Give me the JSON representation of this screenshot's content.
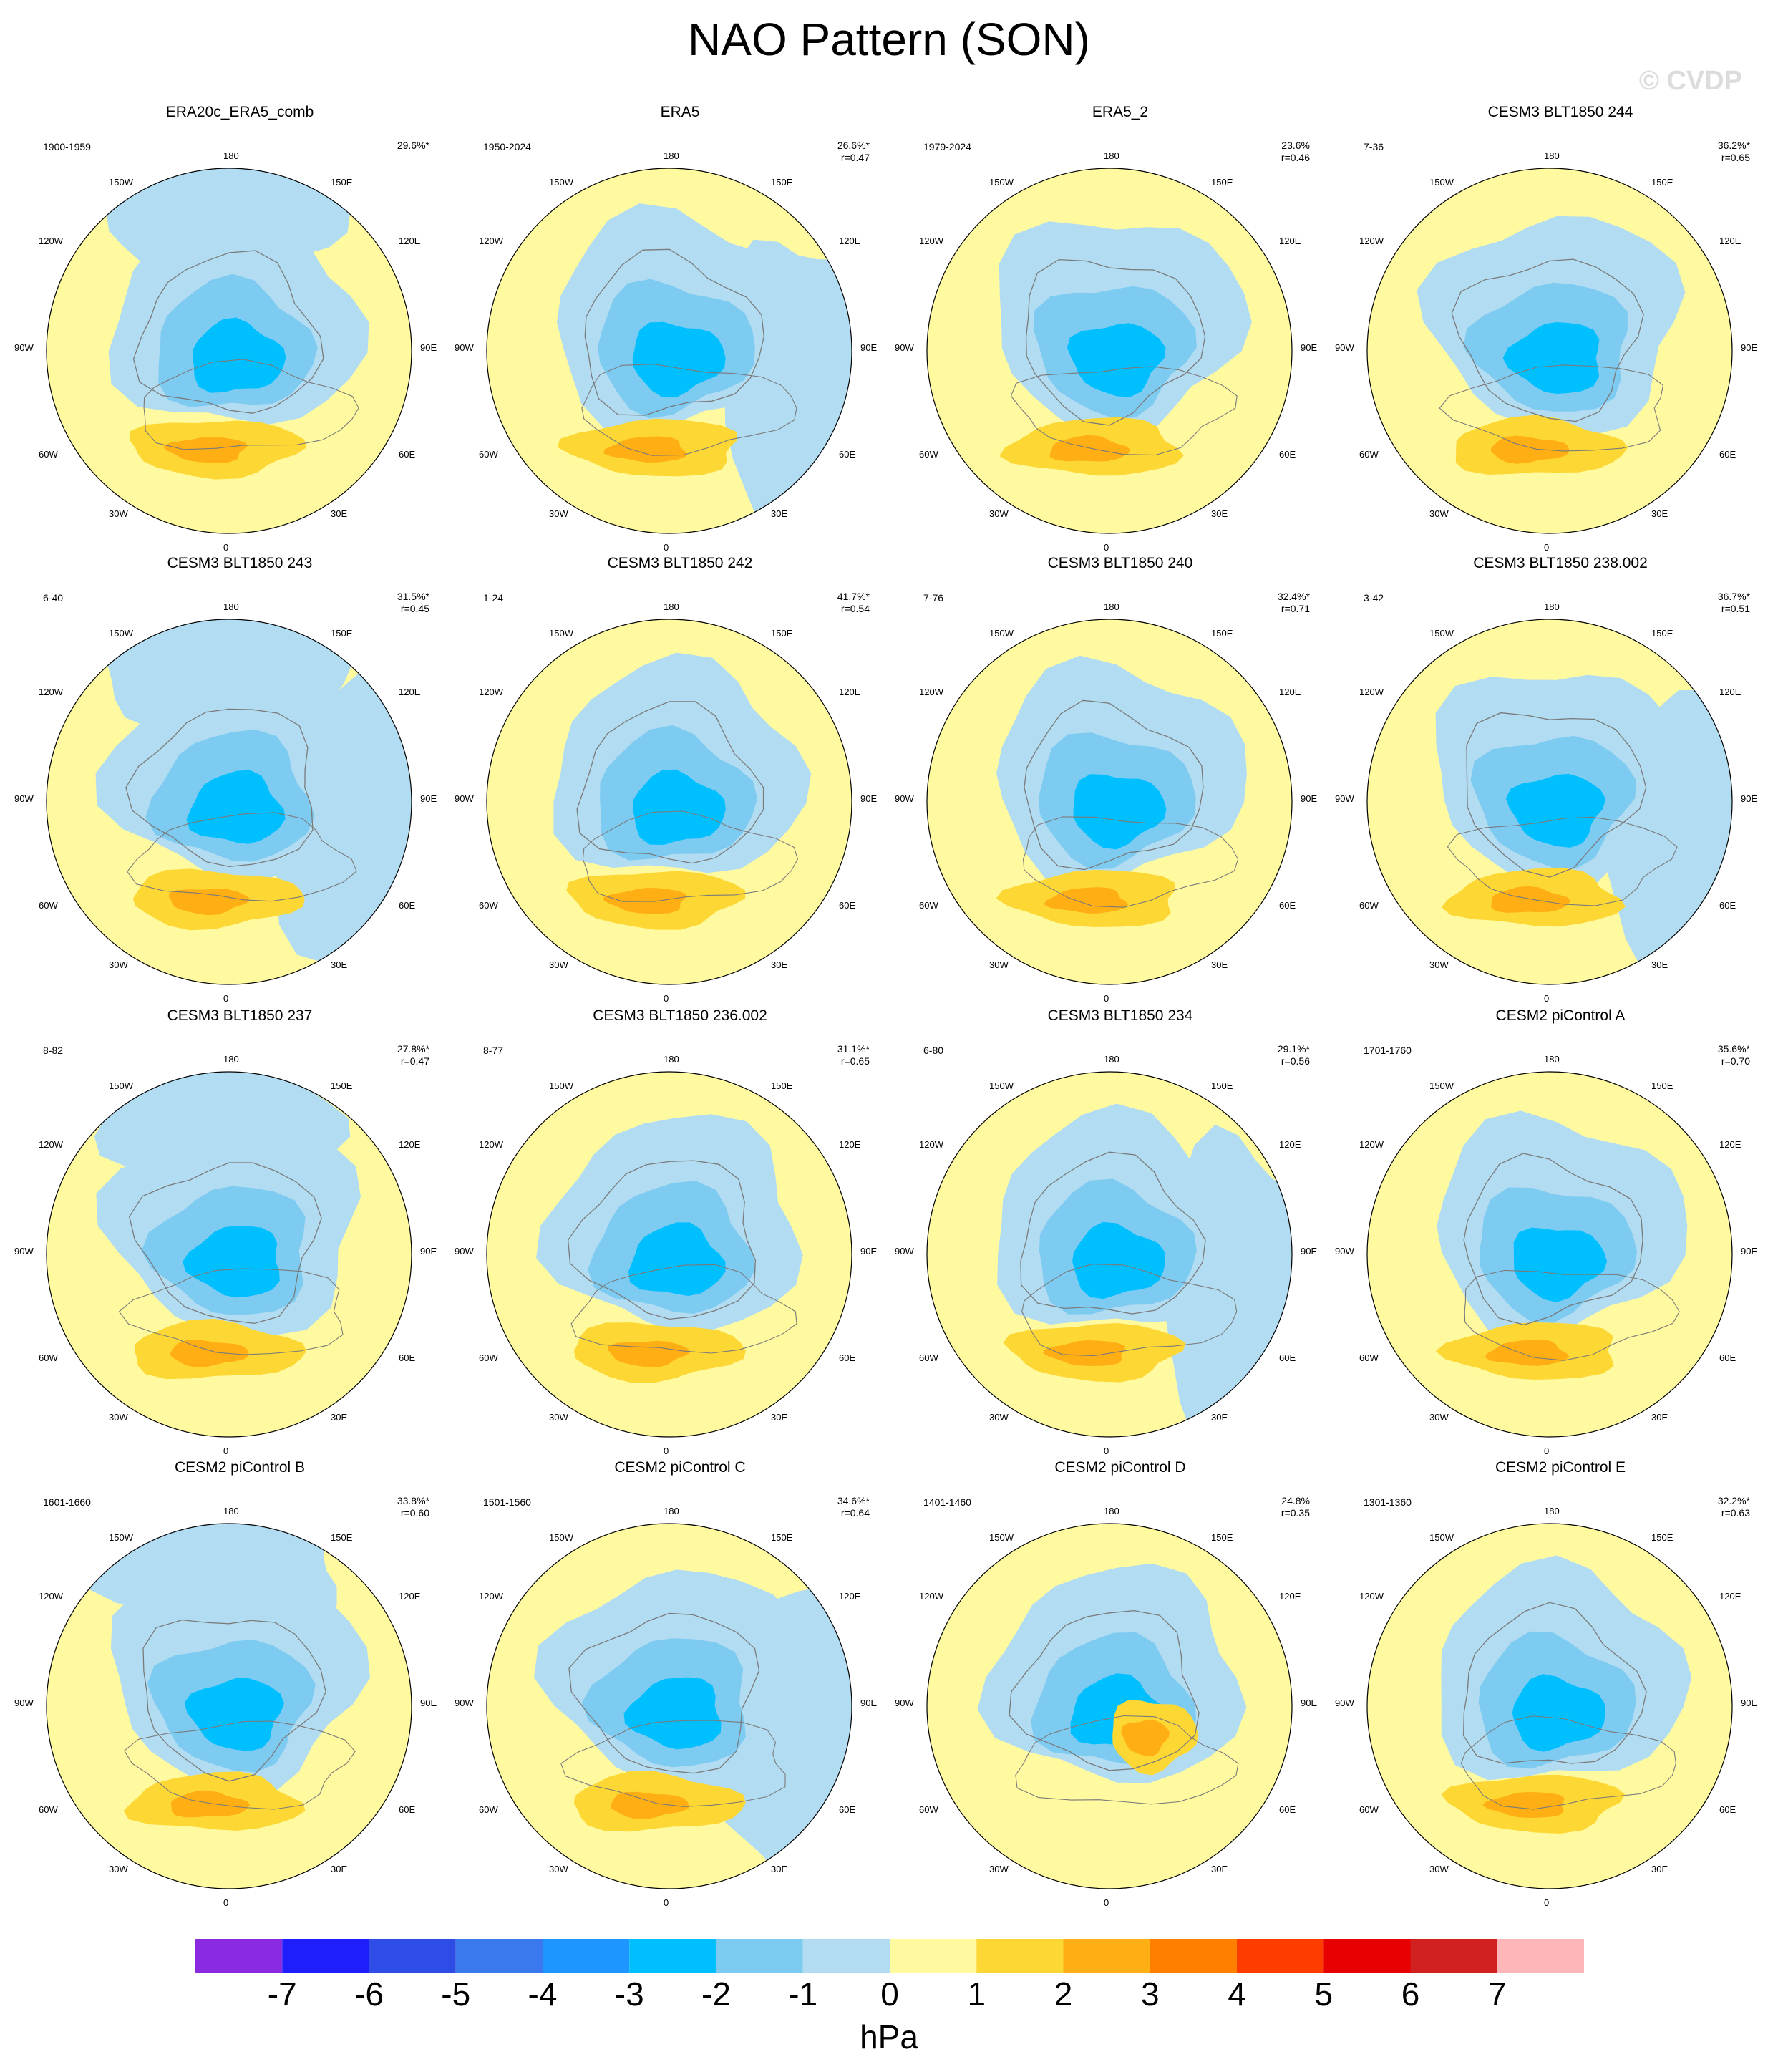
{
  "title": "NAO Pattern (SON)",
  "watermark": "© CVDP",
  "map": {
    "lon_labels": {
      "top": "180",
      "bottom": "0",
      "l150": "150W",
      "r150": "150E",
      "l120": "120W",
      "r120": "120E",
      "l90": "90W",
      "r90": "90E",
      "l60": "60W",
      "r60": "60E",
      "l30": "30W",
      "r30": "30E"
    }
  },
  "colors": {
    "neg7": "#8a2be2",
    "neg6": "#1e1efc",
    "neg5": "#2e4de6",
    "neg4": "#3a78ee",
    "neg3": "#1e96ff",
    "neg2": "#00bfff",
    "neg1": "#7ecbf2",
    "neg0": "#b2dcf2",
    "pos0": "#fffaa0",
    "pos1": "#fdd835",
    "pos2": "#ffae14",
    "pos3": "#ff7f00",
    "pos4": "#ff3c00",
    "pos5": "#e60000",
    "pos6": "#d02020",
    "pos7": "#ffb6b9",
    "land": "#7a7a7a"
  },
  "panels": [
    {
      "title": "ERA20c_ERA5_comb",
      "years": "1900-1959",
      "pct": "29.6%*",
      "r": ""
    },
    {
      "title": "ERA5",
      "years": "1950-2024",
      "pct": "26.6%*",
      "r": "r=0.47"
    },
    {
      "title": "ERA5_2",
      "years": "1979-2024",
      "pct": "23.6%",
      "r": "r=0.46"
    },
    {
      "title": "CESM3 BLT1850 244",
      "years": "7-36",
      "pct": "36.2%*",
      "r": "r=0.65"
    },
    {
      "title": "CESM3 BLT1850 243",
      "years": "6-40",
      "pct": "31.5%*",
      "r": "r=0.45"
    },
    {
      "title": "CESM3 BLT1850 242",
      "years": "1-24",
      "pct": "41.7%*",
      "r": "r=0.54"
    },
    {
      "title": "CESM3 BLT1850 240",
      "years": "7-76",
      "pct": "32.4%*",
      "r": "r=0.71"
    },
    {
      "title": "CESM3 BLT1850 238.002",
      "years": "3-42",
      "pct": "36.7%*",
      "r": "r=0.51"
    },
    {
      "title": "CESM3 BLT1850 237",
      "years": "8-82",
      "pct": "27.8%*",
      "r": "r=0.47"
    },
    {
      "title": "CESM3 BLT1850 236.002",
      "years": "8-77",
      "pct": "31.1%*",
      "r": "r=0.65"
    },
    {
      "title": "CESM3 BLT1850 234",
      "years": "6-80",
      "pct": "29.1%*",
      "r": "r=0.56"
    },
    {
      "title": "CESM2 piControl A",
      "years": "1701-1760",
      "pct": "35.6%*",
      "r": "r=0.70"
    },
    {
      "title": "CESM2 piControl B",
      "years": "1601-1660",
      "pct": "33.8%*",
      "r": "r=0.60"
    },
    {
      "title": "CESM2 piControl C",
      "years": "1501-1560",
      "pct": "34.6%*",
      "r": "r=0.64"
    },
    {
      "title": "CESM2 piControl D",
      "years": "1401-1460",
      "pct": "24.8%",
      "r": "r=0.35"
    },
    {
      "title": "CESM2 piControl E",
      "years": "1301-1360",
      "pct": "32.2%*",
      "r": "r=0.63"
    }
  ],
  "colorbar": {
    "labels": [
      "-7",
      "-6",
      "-5",
      "-4",
      "-3",
      "-2",
      "-1",
      "0",
      "1",
      "2",
      "3",
      "4",
      "5",
      "6",
      "7"
    ],
    "colors": [
      "#8a2be2",
      "#1e1efc",
      "#2e4de6",
      "#3a78ee",
      "#1e96ff",
      "#00bfff",
      "#7ecbf2",
      "#b2dcf2",
      "#fffaa0",
      "#fdd835",
      "#ffae14",
      "#ff7f00",
      "#ff3c00",
      "#e60000",
      "#d02020",
      "#ffb6b9"
    ],
    "unit": "hPa"
  }
}
